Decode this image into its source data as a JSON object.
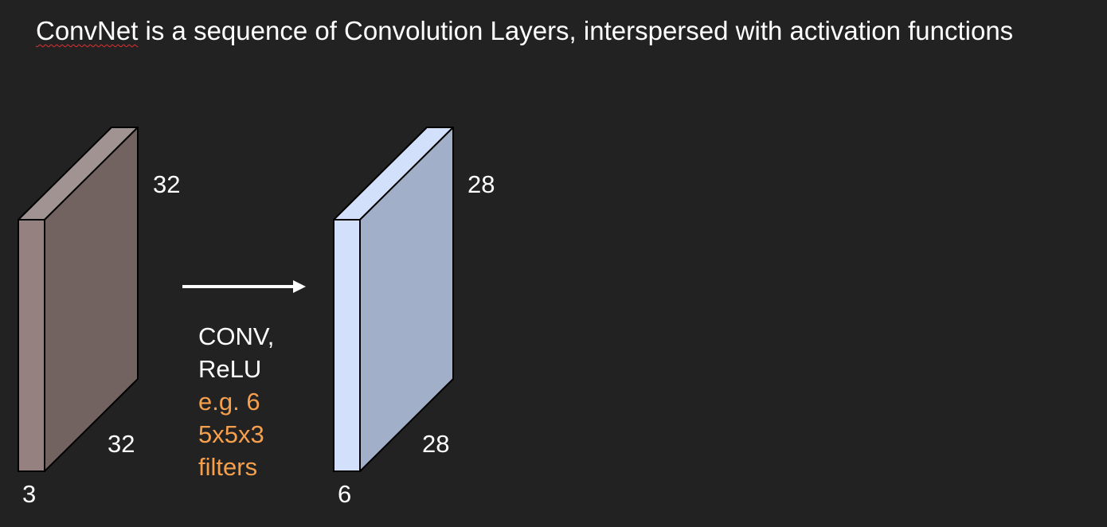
{
  "title": {
    "spellcheck_word": "ConvNet",
    "rest": " is a sequence of Convolution Layers, interspersed with activation functions"
  },
  "input_volume": {
    "height": "32",
    "width": "32",
    "depth": "3",
    "colors": {
      "front": "#948180",
      "side": "#726260",
      "top": "#a09392"
    }
  },
  "output_volume": {
    "height": "28",
    "width": "28",
    "depth": "6",
    "colors": {
      "front": "#d3e0fb",
      "side": "#a2afc8",
      "top": "#d3e0fb"
    }
  },
  "operation": {
    "line1": "CONV,",
    "line2": "ReLU",
    "line3": "e.g. 6",
    "line4": "5x5x3",
    "line5": "filters",
    "highlight_color": "#f6a04d"
  }
}
